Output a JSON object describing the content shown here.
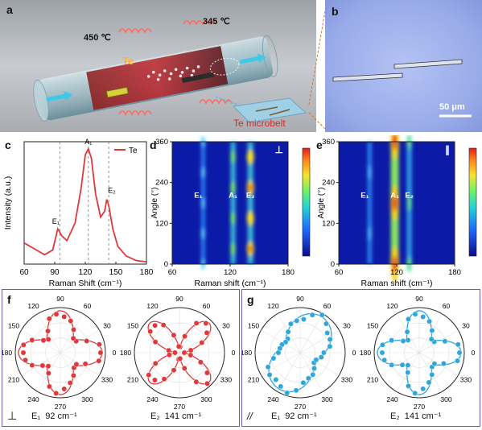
{
  "panel_a": {
    "label": "a",
    "temp_left": "450 ℃",
    "temp_right": "345 ℃",
    "source": "Te",
    "product": "Te microbelt"
  },
  "panel_b": {
    "label": "b",
    "scale": "50 μm"
  },
  "panel_c": {
    "label": "c",
    "legend": "Te",
    "ylabel": "Intensity (a.u.)",
    "xlabel": "Raman Shift (cm⁻¹)",
    "xticks": [
      "60",
      "90",
      "120",
      "150",
      "180"
    ],
    "peaks": [
      "E₁",
      "A₁",
      "E₂"
    ]
  },
  "panel_d": {
    "label": "d",
    "mode": "⊥",
    "ylabel": "Angle (°)",
    "xlabel": "Raman shift (cm⁻¹)",
    "xticks": [
      "60",
      "120",
      "180"
    ],
    "yticks": [
      "0",
      "120",
      "240",
      "360"
    ],
    "peaks": [
      "E₁",
      "A₁",
      "E₂"
    ]
  },
  "panel_e": {
    "label": "e",
    "mode": "∥",
    "ylabel": "Angle (°)",
    "xlabel": "Raman shift (cm⁻¹)",
    "xticks": [
      "60",
      "120",
      "180"
    ],
    "yticks": [
      "0",
      "120",
      "240",
      "360"
    ],
    "peaks": [
      "E₁",
      "A₁",
      "E₂"
    ]
  },
  "panel_f": {
    "label": "f",
    "mode": "⊥",
    "left_caption_mode": "E₁",
    "left_caption_value": "92 cm⁻¹",
    "right_caption_mode": "E₂",
    "right_caption_value": "141 cm⁻¹"
  },
  "panel_g": {
    "label": "g",
    "mode": "//",
    "left_caption_mode": "E₁",
    "left_caption_value": "92 cm⁻¹",
    "right_caption_mode": "E₂",
    "right_caption_value": "141 cm⁻¹"
  },
  "polar_angles": [
    "90",
    "60",
    "30",
    "0",
    "330",
    "300",
    "270",
    "240",
    "210",
    "180",
    "150",
    "120"
  ],
  "colors": {
    "red": "#e0393b",
    "blue": "#2fa6dc",
    "frame": "#6a5fb5"
  },
  "chart_data": [
    {
      "type": "line",
      "panel": "c",
      "x": [
        60,
        70,
        80,
        88,
        93,
        97,
        102,
        110,
        116,
        120,
        123,
        126,
        130,
        135,
        139,
        141,
        143,
        147,
        152,
        160,
        170,
        180
      ],
      "y": [
        0.18,
        0.13,
        0.08,
        0.12,
        0.3,
        0.24,
        0.2,
        0.35,
        0.65,
        0.93,
        0.98,
        0.9,
        0.6,
        0.4,
        0.45,
        0.55,
        0.5,
        0.3,
        0.15,
        0.07,
        0.03,
        0.02
      ],
      "xlim": [
        60,
        180
      ],
      "series": [
        {
          "name": "Te"
        }
      ]
    },
    {
      "type": "heatmap",
      "panel": "d",
      "xlim": [
        60,
        180
      ],
      "ylim": [
        0,
        360
      ]
    },
    {
      "type": "heatmap",
      "panel": "e",
      "xlim": [
        60,
        180
      ],
      "ylim": [
        0,
        360
      ]
    }
  ]
}
